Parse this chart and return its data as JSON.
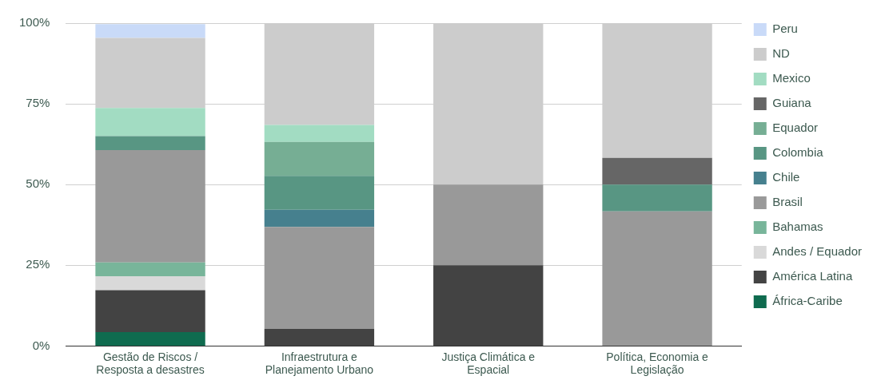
{
  "chart_data": {
    "type": "bar",
    "stacked": true,
    "categories": [
      "Gestão de Riscos / Resposta a desastres",
      "Infraestrutura e Planejamento Urbano",
      "Justiça Climática e Espacial",
      "Política, Economia e Legislação"
    ],
    "series": [
      {
        "name": "África-Caribe",
        "color": "#0f6b4f",
        "values": [
          4.3,
          null,
          null,
          null
        ]
      },
      {
        "name": "América Latina",
        "color": "#434343",
        "values": [
          13.0,
          5.3,
          25,
          null
        ]
      },
      {
        "name": "Andes / Equador",
        "color": "#d9d9d9",
        "values": [
          4.3,
          null,
          null,
          null
        ]
      },
      {
        "name": "Bahamas",
        "color": "#78b59a",
        "values": [
          4.3,
          null,
          null,
          null
        ]
      },
      {
        "name": "Brasil",
        "color": "#999999",
        "values": [
          34.8,
          31.6,
          25,
          41.7
        ]
      },
      {
        "name": "Chile",
        "color": "#46808e",
        "values": [
          null,
          5.3,
          null,
          null
        ]
      },
      {
        "name": "Colombia",
        "color": "#589683",
        "values": [
          4.3,
          10.5,
          null,
          8.3
        ]
      },
      {
        "name": "Equador",
        "color": "#76ae94",
        "values": [
          null,
          10.5,
          null,
          null
        ]
      },
      {
        "name": "Guiana",
        "color": "#666666",
        "values": [
          null,
          null,
          null,
          8.3
        ]
      },
      {
        "name": "Mexico",
        "color": "#a2dcc2",
        "values": [
          8.7,
          5.3,
          null,
          null
        ]
      },
      {
        "name": "ND",
        "color": "#cccccc",
        "values": [
          21.7,
          31.6,
          50,
          41.7
        ]
      },
      {
        "name": "Peru",
        "color": "#c9daf8",
        "values": [
          4.3,
          null,
          null,
          null
        ]
      }
    ],
    "ylim": [
      0,
      100
    ],
    "yticks": [
      {
        "value": 0,
        "label": "0%"
      },
      {
        "value": 25,
        "label": "25%"
      },
      {
        "value": 50,
        "label": "50%"
      },
      {
        "value": 75,
        "label": "75%"
      },
      {
        "value": 100,
        "label": "100%"
      }
    ],
    "grid": "y",
    "legend": "right"
  }
}
